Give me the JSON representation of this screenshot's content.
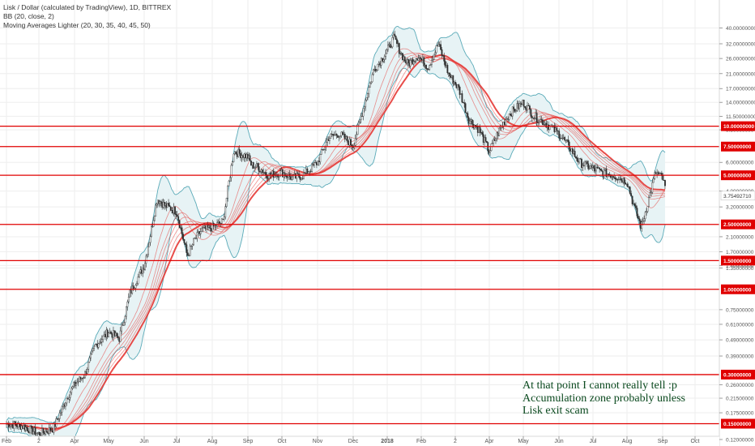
{
  "header": {
    "line1": "Lisk / Dollar (calculated by TradingView), 1D, BITTREX",
    "line2": "BB (20, close, 2)",
    "line3": "Moving Averages Lighter (20, 30, 35, 40, 45, 50)"
  },
  "annotation": {
    "line1": "At that point I cannot really tell :p",
    "line2": "Accumulation zone probably unless",
    "line3": "Lisk exit scam"
  },
  "colors": {
    "background": "#ffffff",
    "grid": "#eeeeee",
    "price_candles": "#2f2f2f",
    "bollinger_band": "#5aaab8",
    "bollinger_fill": "#e7f3f5",
    "moving_averages": "#e53935",
    "horizontal_lines": "#e00000",
    "axis_text": "#555555",
    "annotation_text": "#0b4a1f"
  },
  "chart_data": {
    "type": "line",
    "title": "Lisk / Dollar (calculated by TradingView), 1D, BITTREX",
    "y_scale": "log",
    "ylim": [
      0.13,
      50
    ],
    "x_ticks": [
      "Feb",
      "2",
      "Apr",
      "May",
      "Jun",
      "Jul",
      "Aug",
      "Sep",
      "Oct",
      "Nov",
      "Dec",
      "2018",
      "Feb",
      "2",
      "Apr",
      "May",
      "Jun",
      "Jul",
      "Aug",
      "Sep",
      "Oct"
    ],
    "x_tick_months": [
      0,
      1,
      2,
      3,
      4,
      5,
      6,
      7,
      8,
      9,
      10,
      11,
      12,
      13,
      14,
      15,
      16,
      17,
      18,
      19,
      20
    ],
    "y_tick_labels": [
      "40.00000000",
      "32.00000000",
      "26.00000000",
      "21.00000000",
      "17.00000000",
      "14.00000000",
      "11.50000000",
      "9.50000000",
      "6.00000000",
      "4.00000000",
      "3.20000000",
      "2.10000000",
      "1.70000000",
      "1.40000000",
      "1.35000000",
      "0.75000000",
      "0.61000000",
      "0.49000000",
      "0.39000000",
      "0.26000000",
      "0.21500000",
      "0.17500000",
      "0.12000000"
    ],
    "y_tick_values": [
      40,
      32,
      26,
      21,
      17,
      14,
      11.5,
      9.5,
      6,
      4,
      3.2,
      2.1,
      1.7,
      1.4,
      1.35,
      0.75,
      0.61,
      0.49,
      0.39,
      0.26,
      0.215,
      0.175,
      0.12
    ],
    "horizontal_levels": [
      {
        "value": 10.0,
        "label": "10.00000000"
      },
      {
        "value": 7.5,
        "label": "7.50000000"
      },
      {
        "value": 5.0,
        "label": "5.00000000"
      },
      {
        "value": 2.5,
        "label": "2.50000000"
      },
      {
        "value": 1.5,
        "label": "1.50000000"
      },
      {
        "value": 1.0,
        "label": "1.00000000"
      },
      {
        "value": 0.3,
        "label": "0.30000000"
      },
      {
        "value": 0.15,
        "label": "0.15000000"
      }
    ],
    "last_price": {
      "value": 3.75,
      "label": "3.75492710"
    },
    "series": [
      {
        "x": [
          0,
          0.5,
          1,
          1.4,
          1.8,
          2,
          2.3,
          2.6,
          3,
          3.3,
          3.6,
          4,
          4.2,
          4.4,
          4.6,
          5,
          5.3,
          5.5,
          5.7,
          6,
          6.3,
          6.6,
          7,
          7.1,
          7.3,
          7.6,
          8,
          8.3,
          8.6,
          9,
          9.3,
          9.6,
          10,
          10.3,
          10.6,
          11,
          11.2,
          11.4,
          11.6,
          11.9,
          12.2,
          12.5,
          12.8,
          13.1,
          13.4,
          13.7,
          14,
          14.3,
          14.6,
          15,
          15.3,
          15.6,
          16,
          16.3,
          16.6,
          17,
          17.3,
          17.6,
          18,
          18.2,
          18.4,
          18.6,
          18.8,
          19,
          19.1
        ],
        "y": [
          0.15,
          0.145,
          0.13,
          0.14,
          0.22,
          0.26,
          0.3,
          0.45,
          0.55,
          0.5,
          0.95,
          1.4,
          2.2,
          3.6,
          3.3,
          3.0,
          1.6,
          2.0,
          2.3,
          2.4,
          2.6,
          7.0,
          6.5,
          5.8,
          5.6,
          5.0,
          5.2,
          4.8,
          5.0,
          6.0,
          8.5,
          9.0,
          7.6,
          13.0,
          22.0,
          29.0,
          35.0,
          28.0,
          24.0,
          27.0,
          23.0,
          32.0,
          21.0,
          17.0,
          11.0,
          9.5,
          7.0,
          9.5,
          12.0,
          14.0,
          11.5,
          10.5,
          9.0,
          7.5,
          6.0,
          5.5,
          5.2,
          5.0,
          4.6,
          3.2,
          2.4,
          3.5,
          5.2,
          4.8,
          4.0
        ]
      }
    ]
  }
}
